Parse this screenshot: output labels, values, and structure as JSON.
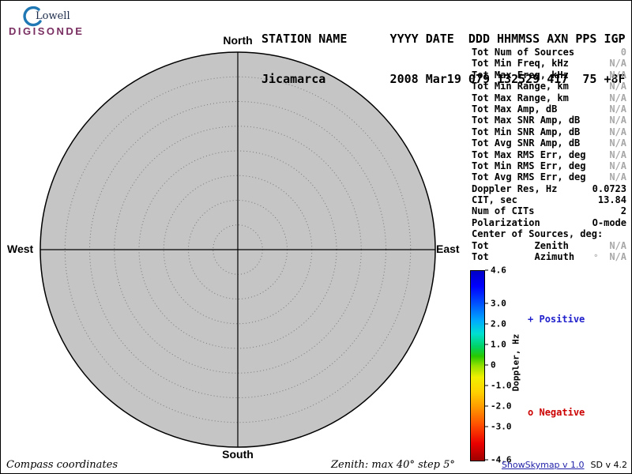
{
  "logo": {
    "top": "Lowell",
    "bottom": "DIGISONDE"
  },
  "header": {
    "line1": "STATION NAME      YYYY DATE  DDD HHMMSS AXN PPS IGP",
    "line2": "Jicamarca         2008 Mar19 079 132529 417  75 +8F"
  },
  "skymap": {
    "compass": {
      "north": "North",
      "south": "South",
      "west": "West",
      "east": "East"
    },
    "zenith_max_deg": 40,
    "zenith_step_deg": 5
  },
  "stats": {
    "rows": [
      {
        "label": "Tot Num of Sources",
        "value": "0",
        "muted": true
      },
      {
        "label": "Tot Min Freq, kHz",
        "value": "N/A",
        "muted": true
      },
      {
        "label": "Tot Max Freq, kHz",
        "value": "N/A",
        "muted": true
      },
      {
        "label": "Tot Min Range, km",
        "value": "N/A",
        "muted": true
      },
      {
        "label": "Tot Max Range, km",
        "value": "N/A",
        "muted": true
      },
      {
        "label": "Tot Max Amp, dB",
        "value": "N/A",
        "muted": true
      },
      {
        "label": "Tot Max SNR Amp, dB",
        "value": "N/A",
        "muted": true
      },
      {
        "label": "Tot Min SNR Amp, dB",
        "value": "N/A",
        "muted": true
      },
      {
        "label": "Tot Avg SNR Amp, dB",
        "value": "N/A",
        "muted": true
      },
      {
        "label": "Tot Max RMS Err, deg",
        "value": "N/A",
        "muted": true
      },
      {
        "label": "Tot Min RMS Err, deg",
        "value": "N/A",
        "muted": true
      },
      {
        "label": "Tot Avg RMS Err, deg",
        "value": "N/A",
        "muted": true
      },
      {
        "label": "Doppler Res, Hz",
        "value": "0.0723"
      },
      {
        "label": "CIT, sec",
        "value": "13.84"
      },
      {
        "label": "Num of CITs",
        "value": "2"
      },
      {
        "label": "Polarization",
        "value": "O-mode"
      },
      {
        "label": "Center of Sources, deg:",
        "value": ""
      },
      {
        "label": "Tot        Zenith",
        "value": "N/A",
        "muted": true
      },
      {
        "label": "Tot        Azimuth",
        "value": "N/A",
        "muted": true,
        "pre": "°"
      }
    ]
  },
  "colorbar": {
    "title": "Doppler, Hz",
    "max": 4.6,
    "min": -4.6,
    "ticks": [
      {
        "label": "4.6",
        "value": 4.6
      },
      {
        "label": "3.0",
        "value": 3.0
      },
      {
        "label": "2.0",
        "value": 2.0
      },
      {
        "label": "1.0",
        "value": 1.0
      },
      {
        "label": "0",
        "value": 0
      },
      {
        "label": "-1.0",
        "value": -1.0
      },
      {
        "label": "-2.0",
        "value": -2.0
      },
      {
        "label": "-3.0",
        "value": -3.0
      },
      {
        "label": "-4.6",
        "value": -4.6
      }
    ],
    "gradient": [
      "#0000c8 0%",
      "#0000ff 8%",
      "#0050ff 17%",
      "#00a8ff 26%",
      "#00e0d2 33%",
      "#00d264 40%",
      "#28c800 45%",
      "#96e000 50%",
      "#f0f000 56%",
      "#ffd000 64%",
      "#ff9800 72%",
      "#ff5000 81%",
      "#eb0000 91%",
      "#9e0000 100%"
    ]
  },
  "legend": {
    "positive": {
      "symbol": "+",
      "label": "Positive"
    },
    "negative": {
      "symbol": "o",
      "label": "Negative"
    }
  },
  "footer": {
    "left": "Compass coordinates",
    "center": "Zenith: max 40°  step 5°",
    "app_version": "ShowSkymap v 1.0",
    "sd_version": "SD v 4.2"
  },
  "colors": {
    "brand_purple": "#7a2f62",
    "logo_blue": "#1f77b4",
    "positive_blue": "#2020cc",
    "negative_red": "#cc0000",
    "muted_gray": "#a8a8a8",
    "link_blue": "#2222aa"
  }
}
